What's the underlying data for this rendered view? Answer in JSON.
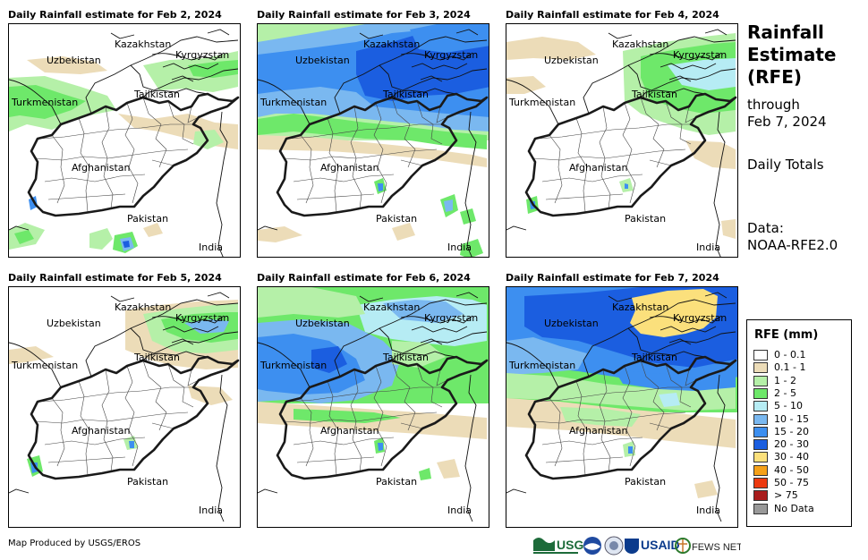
{
  "panels": [
    {
      "title": "Daily Rainfall estimate for Feb 2, 2024",
      "precip": "p1"
    },
    {
      "title": "Daily Rainfall estimate for Feb 3, 2024",
      "precip": "p2"
    },
    {
      "title": "Daily Rainfall estimate for Feb 4, 2024",
      "precip": "p3"
    },
    {
      "title": "Daily Rainfall estimate for Feb 5, 2024",
      "precip": "p4"
    },
    {
      "title": "Daily Rainfall estimate for Feb 6, 2024",
      "precip": "p5"
    },
    {
      "title": "Daily Rainfall estimate for Feb 7, 2024",
      "precip": "p6"
    }
  ],
  "map_labels": {
    "kazakhstan": "Kazakhstan",
    "kyrgyzstan": "Kyrgyzstan",
    "uzbekistan": "Uzbekistan",
    "tajikistan": "Tajikistan",
    "turkmenistan": "Turkmenistan",
    "afghanistan": "Afghanistan",
    "pakistan": "Pakistan",
    "india": "India"
  },
  "side": {
    "title_line1": "Rainfall",
    "title_line2": "Estimate",
    "title_line3": "(RFE)",
    "through": "through",
    "date": "Feb 7, 2024",
    "daily_totals": "Daily Totals",
    "data_label": "Data:",
    "data_source": "NOAA-RFE2.0"
  },
  "legend": {
    "title": "RFE (mm)",
    "items": [
      {
        "label": "0 - 0.1",
        "color": "#ffffff"
      },
      {
        "label": "0.1 - 1",
        "color": "#ecdcb8"
      },
      {
        "label": "1 - 2",
        "color": "#b5f0a8"
      },
      {
        "label": "2 - 5",
        "color": "#6ee86a"
      },
      {
        "label": "5 - 10",
        "color": "#b6ecf4"
      },
      {
        "label": "10 - 15",
        "color": "#7ab8f0"
      },
      {
        "label": "15 - 20",
        "color": "#3d8ff0"
      },
      {
        "label": "20 - 30",
        "color": "#1b5ee0"
      },
      {
        "label": "30 - 40",
        "color": "#fbe07c"
      },
      {
        "label": "40 - 50",
        "color": "#f5a11a"
      },
      {
        "label": "50 - 75",
        "color": "#ec3a10"
      },
      {
        "label": "> 75",
        "color": "#a81c1c"
      },
      {
        "label": "No Data",
        "color": "#999999"
      }
    ]
  },
  "footer": {
    "credit": "Map Produced by USGS/EROS"
  },
  "logos": {
    "usgs": "USGS",
    "usaid": "USAID",
    "fewsnet": "FEWS NET"
  }
}
